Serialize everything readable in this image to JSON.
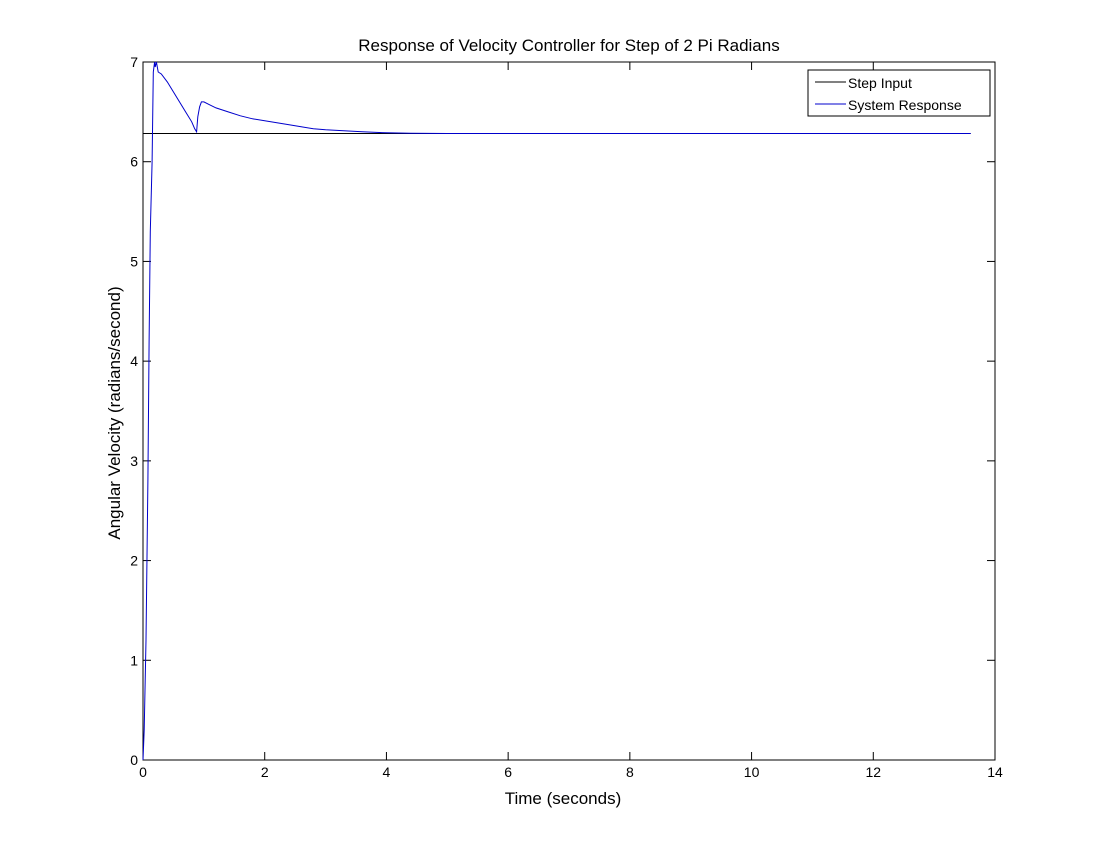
{
  "chart_data": {
    "type": "line",
    "title": "Response of Velocity Controller for Step of 2 Pi Radians",
    "xlabel": "Time (seconds)",
    "ylabel": "Angular Velocity (radians/second)",
    "xlim": [
      0,
      14
    ],
    "ylim": [
      0,
      7
    ],
    "xticks": [
      0,
      2,
      4,
      6,
      8,
      10,
      12,
      14
    ],
    "yticks": [
      0,
      1,
      2,
      3,
      4,
      5,
      6,
      7
    ],
    "grid": false,
    "legend_position": "top-right",
    "series": [
      {
        "name": "Step Input",
        "color": "#000000",
        "x": [
          0,
          13.6
        ],
        "y": [
          6.283,
          6.283
        ]
      },
      {
        "name": "System Response",
        "color": "#0000cc",
        "x": [
          0,
          0.02,
          0.05,
          0.08,
          0.1,
          0.12,
          0.15,
          0.17,
          0.19,
          0.2,
          0.22,
          0.25,
          0.3,
          0.4,
          0.5,
          0.6,
          0.7,
          0.8,
          0.85,
          0.88,
          0.9,
          0.93,
          0.96,
          1.0,
          1.1,
          1.2,
          1.4,
          1.6,
          1.8,
          2.0,
          2.2,
          2.4,
          2.6,
          2.8,
          3.0,
          3.3,
          3.6,
          4.0,
          4.4,
          5.0,
          6.0,
          7.0,
          8.0,
          9.0,
          10.0,
          11.0,
          12.0,
          13.0,
          13.6
        ],
        "y": [
          0,
          0.3,
          1.2,
          2.8,
          4.2,
          5.3,
          6.0,
          6.9,
          7.0,
          6.95,
          7.0,
          6.9,
          6.88,
          6.8,
          6.7,
          6.6,
          6.5,
          6.4,
          6.33,
          6.3,
          6.45,
          6.55,
          6.6,
          6.6,
          6.57,
          6.54,
          6.5,
          6.46,
          6.43,
          6.41,
          6.39,
          6.37,
          6.35,
          6.33,
          6.32,
          6.31,
          6.3,
          6.29,
          6.285,
          6.283,
          6.283,
          6.283,
          6.283,
          6.283,
          6.283,
          6.283,
          6.283,
          6.283,
          6.283
        ]
      }
    ]
  }
}
